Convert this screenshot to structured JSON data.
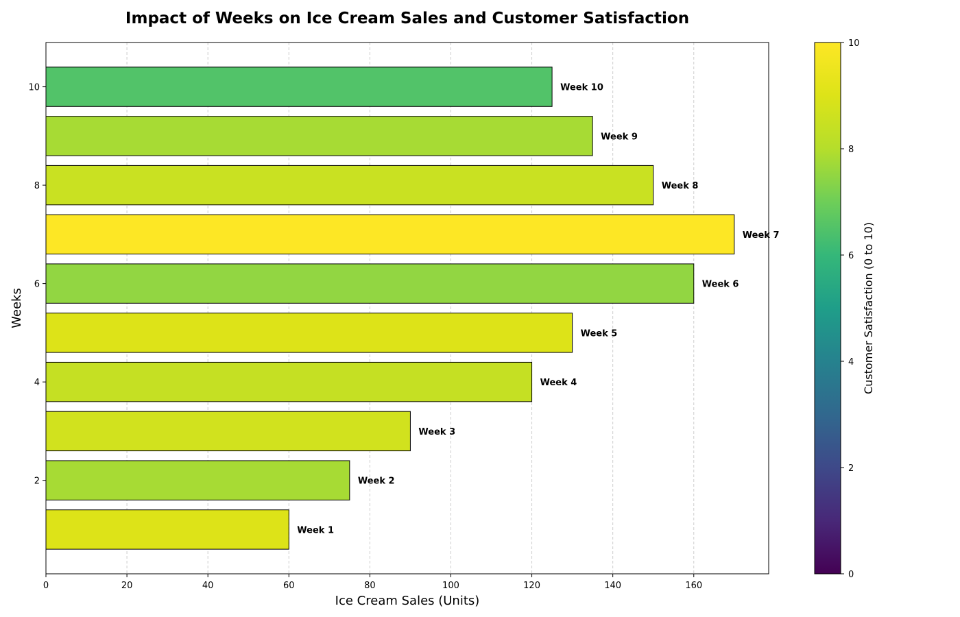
{
  "chart_data": {
    "type": "bar",
    "orientation": "horizontal",
    "title": "Impact of Weeks on Ice Cream Sales and Customer Satisfaction",
    "xlabel": "Ice Cream Sales (Units)",
    "ylabel": "Weeks",
    "xlim": [
      0,
      178.5
    ],
    "ylim": [
      0.1,
      10.9
    ],
    "xticks": [
      0,
      20,
      40,
      60,
      80,
      100,
      120,
      140,
      160
    ],
    "yticks": [
      2,
      4,
      6,
      8,
      10
    ],
    "grid": "x-dashed",
    "weeks": [
      1,
      2,
      3,
      4,
      5,
      6,
      7,
      8,
      9,
      10
    ],
    "labels": [
      "Week 1",
      "Week 2",
      "Week 3",
      "Week 4",
      "Week 5",
      "Week 6",
      "Week 7",
      "Week 8",
      "Week 9",
      "Week 10"
    ],
    "values": [
      60,
      75,
      90,
      120,
      130,
      160,
      170,
      150,
      135,
      125
    ],
    "satisfaction": [
      9.0,
      7.8,
      8.7,
      8.4,
      9.0,
      7.5,
      10.0,
      8.5,
      7.8,
      6.5
    ],
    "colorbar": {
      "label": "Customer Satisfaction (0 to 10)",
      "range": [
        0,
        10
      ],
      "ticks": [
        0,
        2,
        4,
        6,
        8,
        10
      ],
      "colormap": "viridis"
    }
  }
}
